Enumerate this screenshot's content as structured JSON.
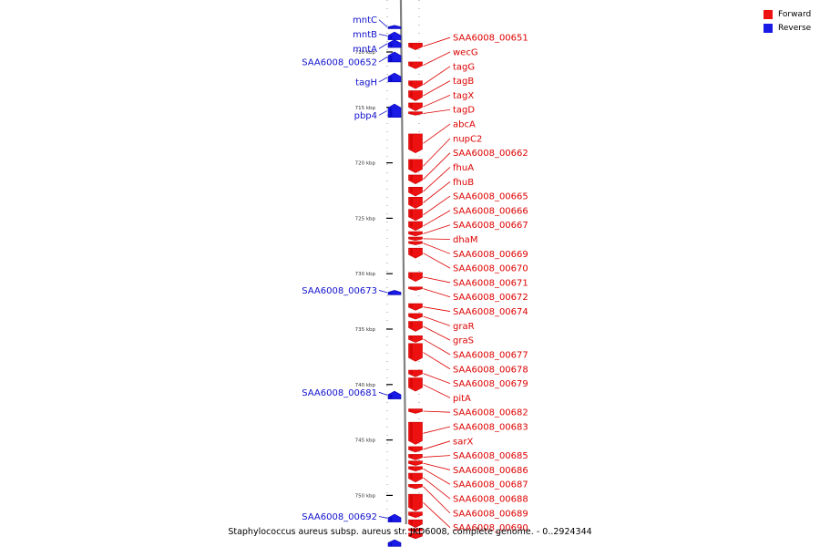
{
  "colors": {
    "forward": "#ee1111",
    "forward_dark": "#c80000",
    "reverse": "#1a1ae6",
    "reverse_dark": "#0000b0",
    "backbone": "#808080",
    "label_forward": "#dd0000",
    "label_reverse": "#1010cc",
    "tick": "#000000"
  },
  "legend": [
    {
      "label": "Forward",
      "color": "#ee1111"
    },
    {
      "label": "Reverse",
      "color": "#1a1ae6"
    }
  ],
  "caption": "Staphylococcus aureus subsp. aureus str. JKD6008, complete genome. - 0..2924344",
  "ruler": {
    "ticks": [
      {
        "label": "710 kbp",
        "pos_kbp": 710
      },
      {
        "label": "715 kbp",
        "pos_kbp": 715
      },
      {
        "label": "720 kbp",
        "pos_kbp": 720
      },
      {
        "label": "725 kbp",
        "pos_kbp": 725
      },
      {
        "label": "730 kbp",
        "pos_kbp": 730
      },
      {
        "label": "735 kbp",
        "pos_kbp": 735
      },
      {
        "label": "740 kbp",
        "pos_kbp": 740
      },
      {
        "label": "745 kbp",
        "pos_kbp": 745
      },
      {
        "label": "750 kbp",
        "pos_kbp": 750
      }
    ]
  },
  "reverse_genes": [
    {
      "label": "mntC",
      "label_kbp": 707.1,
      "start_kbp": 707.6,
      "end_kbp": 707.9
    },
    {
      "label": "mntB",
      "label_kbp": 708.4,
      "start_kbp": 708.2,
      "end_kbp": 708.9
    },
    {
      "label": "mntA",
      "label_kbp": 709.7,
      "start_kbp": 708.9,
      "end_kbp": 709.6
    },
    {
      "label": "SAA6008_00652",
      "label_kbp": 710.9,
      "start_kbp": 710.0,
      "end_kbp": 710.9
    },
    {
      "label": "tagH",
      "label_kbp": 712.7,
      "start_kbp": 711.9,
      "end_kbp": 712.7
    },
    {
      "label": "pbp4",
      "label_kbp": 715.7,
      "start_kbp": 714.7,
      "end_kbp": 715.9
    },
    {
      "label": "SAA6008_00673",
      "label_kbp": 731.5,
      "start_kbp": 731.5,
      "end_kbp": 731.9
    },
    {
      "label": "SAA6008_00681",
      "label_kbp": 740.7,
      "start_kbp": 740.6,
      "end_kbp": 741.3
    },
    {
      "label": "SAA6008_00692",
      "label_kbp": 751.9,
      "start_kbp": 751.7,
      "end_kbp": 752.4
    },
    {
      "label": "",
      "label_kbp": 754.5,
      "start_kbp": 754.0,
      "end_kbp": 754.6
    }
  ],
  "forward_genes": [
    {
      "label": "SAA6008_00651",
      "label_kbp": 708.7,
      "start_kbp": 709.2,
      "end_kbp": 709.8
    },
    {
      "label": "wecG",
      "label_kbp": 710.0,
      "start_kbp": 710.9,
      "end_kbp": 711.5
    },
    {
      "label": "tagG",
      "label_kbp": 711.3,
      "start_kbp": 712.6,
      "end_kbp": 713.3
    },
    {
      "label": "tagB",
      "label_kbp": 712.6,
      "start_kbp": 713.5,
      "end_kbp": 714.4
    },
    {
      "label": "tagX",
      "label_kbp": 713.9,
      "start_kbp": 714.6,
      "end_kbp": 715.3
    },
    {
      "label": "tagD",
      "label_kbp": 715.2,
      "start_kbp": 715.4,
      "end_kbp": 715.7
    },
    {
      "label": "abcA",
      "label_kbp": 716.5,
      "start_kbp": 717.4,
      "end_kbp": 719.1
    },
    {
      "label": "nupC2",
      "label_kbp": 717.8,
      "start_kbp": 719.7,
      "end_kbp": 720.9
    },
    {
      "label": "SAA6008_00662",
      "label_kbp": 719.1,
      "start_kbp": 721.1,
      "end_kbp": 721.9
    },
    {
      "label": "fhuA",
      "label_kbp": 720.4,
      "start_kbp": 722.2,
      "end_kbp": 723.0
    },
    {
      "label": "fhuB",
      "label_kbp": 721.7,
      "start_kbp": 723.1,
      "end_kbp": 724.1
    },
    {
      "label": "SAA6008_00665",
      "label_kbp": 723.0,
      "start_kbp": 724.2,
      "end_kbp": 725.2
    },
    {
      "label": "SAA6008_00666",
      "label_kbp": 724.3,
      "start_kbp": 725.3,
      "end_kbp": 726.1
    },
    {
      "label": "SAA6008_00667",
      "label_kbp": 725.6,
      "start_kbp": 726.2,
      "end_kbp": 726.6
    },
    {
      "label": "dhaM",
      "label_kbp": 726.9,
      "start_kbp": 726.7,
      "end_kbp": 727.0
    },
    {
      "label": "SAA6008_00669",
      "label_kbp": 728.2,
      "start_kbp": 727.1,
      "end_kbp": 727.4
    },
    {
      "label": "SAA6008_00670",
      "label_kbp": 729.5,
      "start_kbp": 727.7,
      "end_kbp": 728.6
    },
    {
      "label": "SAA6008_00671",
      "label_kbp": 730.8,
      "start_kbp": 729.9,
      "end_kbp": 730.7
    },
    {
      "label": "SAA6008_00672",
      "label_kbp": 732.1,
      "start_kbp": 731.2,
      "end_kbp": 731.5
    },
    {
      "label": "SAA6008_00674",
      "label_kbp": 733.4,
      "start_kbp": 732.7,
      "end_kbp": 733.3
    },
    {
      "label": "graR",
      "label_kbp": 734.7,
      "start_kbp": 733.6,
      "end_kbp": 734.1
    },
    {
      "label": "graS",
      "label_kbp": 736.0,
      "start_kbp": 734.3,
      "end_kbp": 735.2
    },
    {
      "label": "SAA6008_00677",
      "label_kbp": 737.3,
      "start_kbp": 735.6,
      "end_kbp": 736.2
    },
    {
      "label": "SAA6008_00678",
      "label_kbp": 738.6,
      "start_kbp": 736.3,
      "end_kbp": 737.9
    },
    {
      "label": "SAA6008_00679",
      "label_kbp": 739.9,
      "start_kbp": 738.7,
      "end_kbp": 739.3
    },
    {
      "label": "pitA",
      "label_kbp": 741.2,
      "start_kbp": 739.4,
      "end_kbp": 740.6
    },
    {
      "label": "SAA6008_00682",
      "label_kbp": 742.5,
      "start_kbp": 742.2,
      "end_kbp": 742.6
    },
    {
      "label": "SAA6008_00683",
      "label_kbp": 743.8,
      "start_kbp": 743.4,
      "end_kbp": 745.4
    },
    {
      "label": "sarX",
      "label_kbp": 745.1,
      "start_kbp": 745.6,
      "end_kbp": 746.1
    },
    {
      "label": "SAA6008_00685",
      "label_kbp": 746.4,
      "start_kbp": 746.3,
      "end_kbp": 746.8
    },
    {
      "label": "SAA6008_00686",
      "label_kbp": 747.7,
      "start_kbp": 746.9,
      "end_kbp": 747.3
    },
    {
      "label": "SAA6008_00687",
      "label_kbp": 749.0,
      "start_kbp": 747.4,
      "end_kbp": 747.8
    },
    {
      "label": "SAA6008_00688",
      "label_kbp": 750.3,
      "start_kbp": 748.0,
      "end_kbp": 748.8
    },
    {
      "label": "SAA6008_00689",
      "label_kbp": 751.6,
      "start_kbp": 749.0,
      "end_kbp": 749.4
    },
    {
      "label": "SAA6008_00690",
      "label_kbp": 752.9,
      "start_kbp": 749.9,
      "end_kbp": 751.4
    },
    {
      "label": "",
      "label_kbp": 752.0,
      "start_kbp": 751.5,
      "end_kbp": 752.0
    },
    {
      "label": "",
      "label_kbp": 752.1,
      "start_kbp": 752.2,
      "end_kbp": 752.9
    },
    {
      "label": "",
      "label_kbp": 753.0,
      "start_kbp": 753.0,
      "end_kbp": 753.3
    },
    {
      "label": "",
      "label_kbp": 753.5,
      "start_kbp": 753.4,
      "end_kbp": 753.9
    }
  ]
}
